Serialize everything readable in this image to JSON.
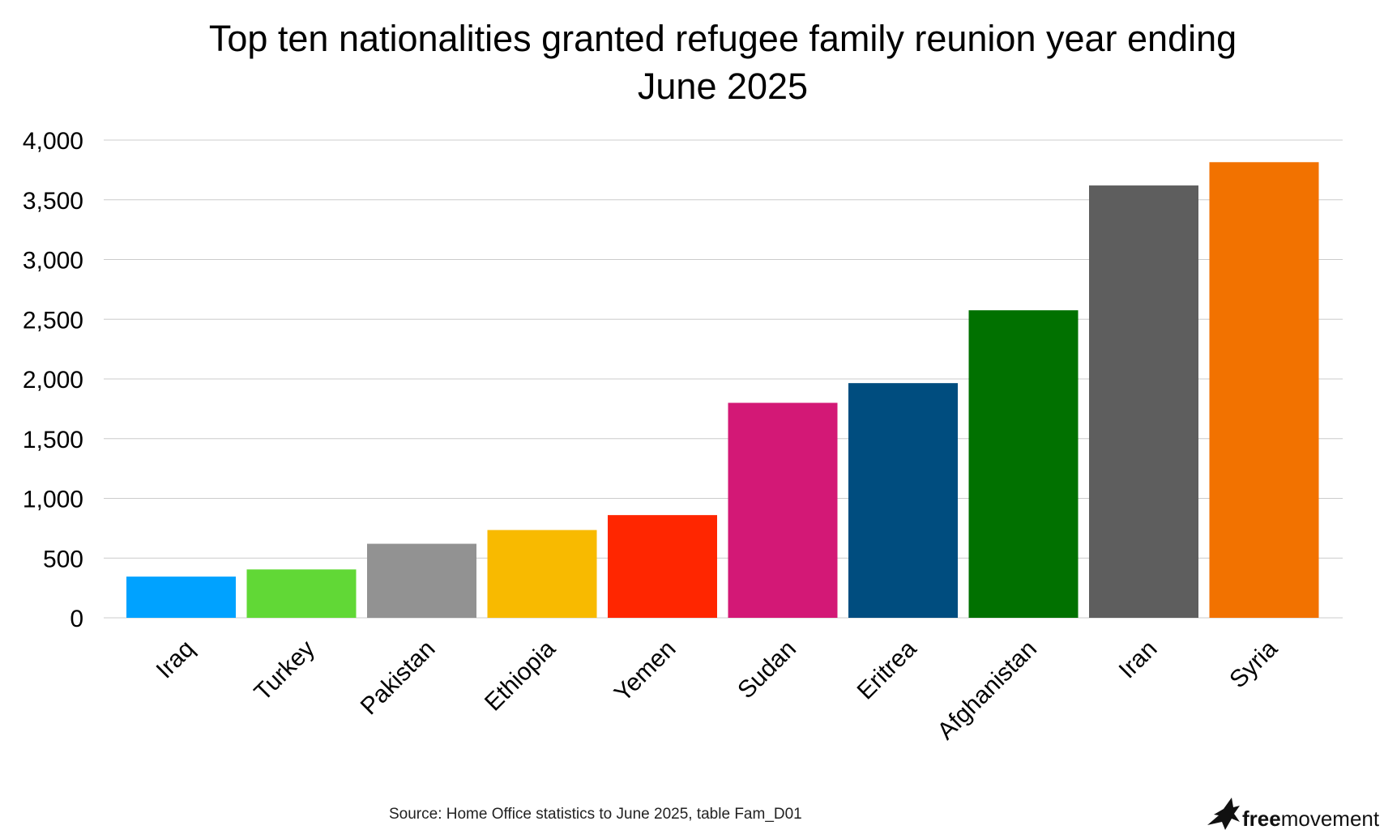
{
  "chart_data": {
    "type": "bar",
    "title": "Top ten nationalities granted refugee family reunion year ending June 2025",
    "title_lines": [
      "Top ten nationalities granted refugee family reunion year ending",
      "June 2025"
    ],
    "xlabel": "",
    "ylabel": "",
    "ylim": [
      0,
      4000
    ],
    "yticks": [
      0,
      500,
      1000,
      1500,
      2000,
      2500,
      3000,
      3500,
      4000
    ],
    "ytick_labels": [
      "0",
      "500",
      "1,000",
      "1,500",
      "2,000",
      "2,500",
      "3,000",
      "3,500",
      "4,000"
    ],
    "grid": true,
    "legend": "none",
    "categories": [
      "Iraq",
      "Turkey",
      "Pakistan",
      "Ethiopia",
      "Yemen",
      "Sudan",
      "Eritrea",
      "Afghanistan",
      "Iran",
      "Syria"
    ],
    "values": [
      345,
      405,
      620,
      735,
      860,
      1800,
      1965,
      2575,
      3620,
      3815
    ],
    "colors": [
      "#00a2ff",
      "#61d836",
      "#929292",
      "#f8ba00",
      "#ff2600",
      "#d31876",
      "#004d7f",
      "#017100",
      "#5e5e5e",
      "#f27200"
    ]
  },
  "footer": {
    "source": "Source: Home Office statistics to June 2025, table Fam_D01"
  },
  "logo": {
    "text_bold": "free",
    "text_regular": "movement",
    "icon": "bird-icon"
  }
}
